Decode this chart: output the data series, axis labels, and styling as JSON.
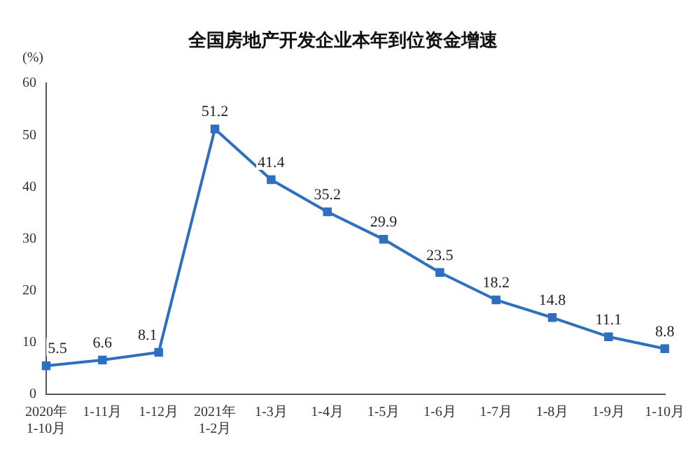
{
  "chart_data": {
    "type": "line",
    "title": "全国房地产开发企业本年到位资金增速",
    "ylabel": "(%)",
    "categories": [
      "2020年\n1-10月",
      "1-11月",
      "1-12月",
      "2021年\n1-2月",
      "1-3月",
      "1-4月",
      "1-5月",
      "1-6月",
      "1-7月",
      "1-8月",
      "1-9月",
      "1-10月"
    ],
    "series": [
      {
        "color": "#2e6fc0",
        "values": [
          5.5,
          6.6,
          8.1,
          51.2,
          41.4,
          35.2,
          29.9,
          23.5,
          18.2,
          14.8,
          11.1,
          8.8
        ]
      }
    ],
    "ylim": [
      0,
      60
    ],
    "yticks": [
      0,
      10,
      20,
      30,
      40,
      50,
      60
    ],
    "grid": false,
    "legend": false,
    "marker": "square",
    "line_style": "solid",
    "data_labels": true
  }
}
